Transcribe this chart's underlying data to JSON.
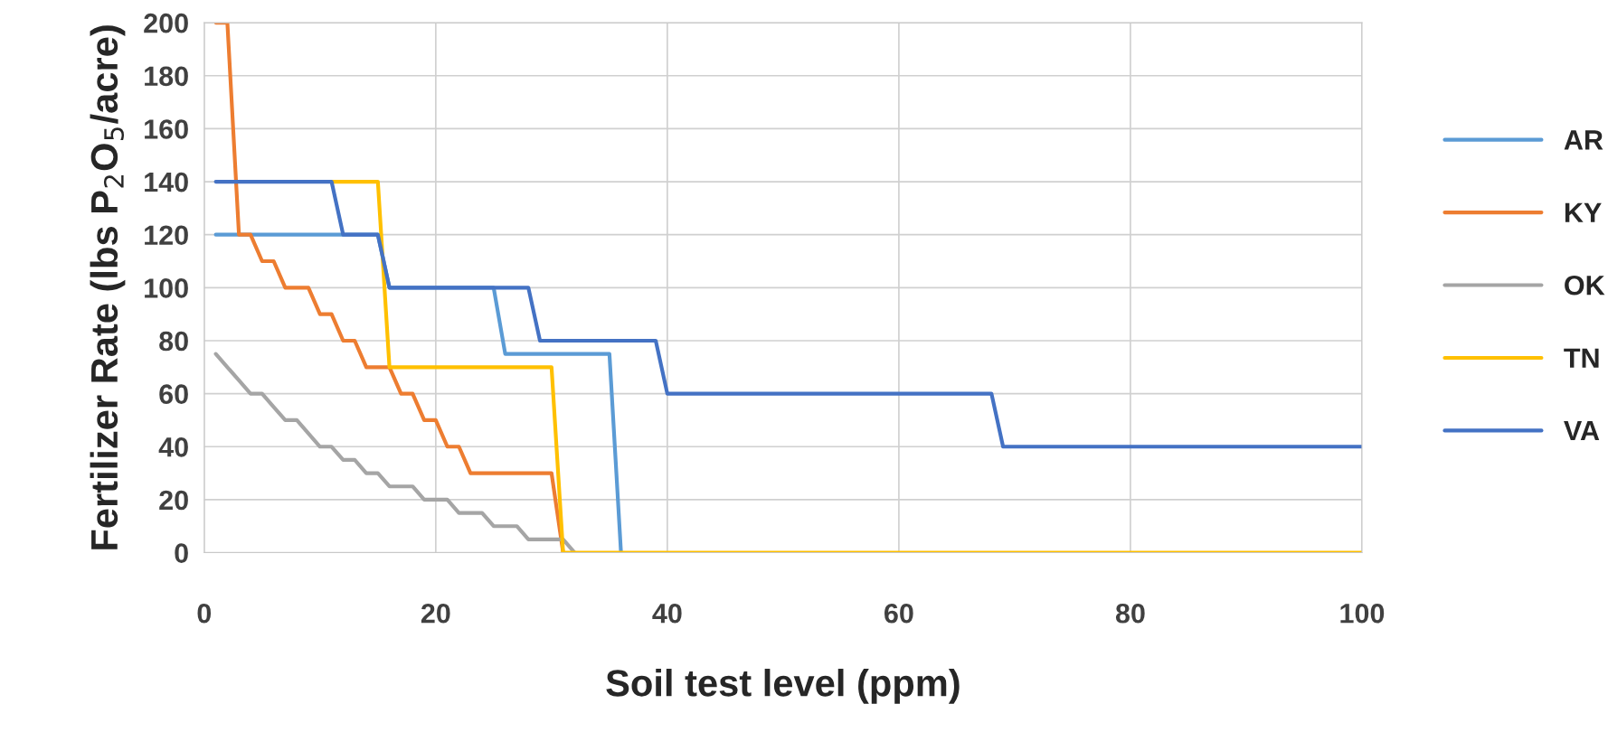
{
  "chart_data": {
    "type": "line",
    "xlabel": "Soil test level (ppm)",
    "ylabel": "Fertilizer Rate (lbs P$_{2}$O$_{5}$/acre)",
    "x": [
      1,
      2,
      3,
      4,
      5,
      6,
      7,
      8,
      9,
      10,
      11,
      12,
      13,
      14,
      15,
      16,
      17,
      18,
      19,
      20,
      21,
      22,
      23,
      24,
      25,
      26,
      27,
      28,
      29,
      30,
      31,
      32,
      33,
      34,
      35,
      36,
      37,
      38,
      39,
      40,
      41,
      42,
      43,
      44,
      45,
      46,
      47,
      48,
      49,
      50,
      51,
      52,
      53,
      54,
      55,
      56,
      57,
      58,
      59,
      60,
      61,
      62,
      63,
      64,
      65,
      66,
      67,
      68,
      69,
      70,
      71,
      72,
      73,
      74,
      75,
      76,
      77,
      78,
      79,
      80,
      81,
      82,
      83,
      84,
      85,
      86,
      87,
      88,
      89,
      90,
      91,
      92,
      93,
      94,
      95,
      96,
      97,
      98,
      99,
      100
    ],
    "series": [
      {
        "name": "AR",
        "color": "#5b9bd5",
        "values": [
          120,
          120,
          120,
          120,
          120,
          120,
          120,
          120,
          120,
          120,
          120,
          120,
          120,
          120,
          120,
          100,
          100,
          100,
          100,
          100,
          100,
          100,
          100,
          100,
          100,
          75,
          75,
          75,
          75,
          75,
          75,
          75,
          75,
          75,
          75,
          0,
          null,
          null,
          null,
          null,
          null,
          null,
          null,
          null,
          null,
          null,
          null,
          null,
          null,
          null,
          null,
          null,
          null,
          null,
          null,
          null,
          null,
          null,
          null,
          null,
          null,
          null,
          null,
          null,
          null,
          null,
          null,
          null,
          null,
          null,
          null,
          null,
          null,
          null,
          null,
          null,
          null,
          null,
          null,
          null,
          null,
          null,
          null,
          null,
          null,
          null,
          null,
          null,
          null,
          null,
          null,
          null,
          null,
          null,
          null,
          null,
          null,
          null,
          null,
          null
        ]
      },
      {
        "name": "KY",
        "color": "#ed7d31",
        "values": [
          200,
          200,
          120,
          120,
          110,
          110,
          100,
          100,
          100,
          90,
          90,
          80,
          80,
          70,
          70,
          70,
          60,
          60,
          50,
          50,
          40,
          40,
          30,
          30,
          30,
          30,
          30,
          30,
          30,
          30,
          0,
          null,
          null,
          null,
          null,
          null,
          null,
          null,
          null,
          null,
          null,
          null,
          null,
          null,
          null,
          null,
          null,
          null,
          null,
          null,
          null,
          null,
          null,
          null,
          null,
          null,
          null,
          null,
          null,
          null,
          null,
          null,
          null,
          null,
          null,
          null,
          null,
          null,
          null,
          null,
          null,
          null,
          null,
          null,
          null,
          null,
          null,
          null,
          null,
          null,
          null,
          null,
          null,
          null,
          null,
          null,
          null,
          null,
          null,
          null,
          null,
          null,
          null,
          null,
          null,
          null,
          null,
          null,
          null,
          null
        ]
      },
      {
        "name": "OK",
        "color": "#a5a5a5",
        "values": [
          75,
          70,
          65,
          60,
          60,
          55,
          50,
          50,
          45,
          40,
          40,
          35,
          35,
          30,
          30,
          25,
          25,
          25,
          20,
          20,
          20,
          15,
          15,
          15,
          10,
          10,
          10,
          5,
          5,
          5,
          5,
          0,
          null,
          null,
          null,
          null,
          null,
          null,
          null,
          null,
          null,
          null,
          null,
          null,
          null,
          null,
          null,
          null,
          null,
          null,
          null,
          null,
          null,
          null,
          null,
          null,
          null,
          null,
          null,
          null,
          null,
          null,
          null,
          null,
          null,
          null,
          null,
          null,
          null,
          null,
          null,
          null,
          null,
          null,
          null,
          null,
          null,
          null,
          null,
          null,
          null,
          null,
          null,
          null,
          null,
          null,
          null,
          null,
          null,
          null,
          null,
          null,
          null,
          null,
          null,
          null,
          null,
          null,
          null,
          null
        ]
      },
      {
        "name": "TN",
        "color": "#ffc000",
        "values": [
          null,
          null,
          null,
          null,
          null,
          null,
          null,
          null,
          null,
          null,
          140,
          140,
          140,
          140,
          140,
          70,
          70,
          70,
          70,
          70,
          70,
          70,
          70,
          70,
          70,
          70,
          70,
          70,
          70,
          70,
          0,
          0,
          0,
          0,
          0,
          0,
          0,
          0,
          0,
          0,
          0,
          0,
          0,
          0,
          0,
          0,
          0,
          0,
          0,
          0,
          0,
          0,
          0,
          0,
          0,
          0,
          0,
          0,
          0,
          0,
          0,
          0,
          0,
          0,
          0,
          0,
          0,
          0,
          0,
          0,
          0,
          0,
          0,
          0,
          0,
          0,
          0,
          0,
          0,
          0,
          0,
          0,
          0,
          0,
          0,
          0,
          0,
          0,
          0,
          0,
          0,
          0,
          0,
          0,
          0,
          0,
          0,
          0,
          0,
          0
        ]
      },
      {
        "name": "VA",
        "color": "#4472c4",
        "values": [
          140,
          140,
          140,
          140,
          140,
          140,
          140,
          140,
          140,
          140,
          140,
          120,
          120,
          120,
          120,
          100,
          100,
          100,
          100,
          100,
          100,
          100,
          100,
          100,
          100,
          100,
          100,
          100,
          80,
          80,
          80,
          80,
          80,
          80,
          80,
          80,
          80,
          80,
          80,
          60,
          60,
          60,
          60,
          60,
          60,
          60,
          60,
          60,
          60,
          60,
          60,
          60,
          60,
          60,
          60,
          60,
          60,
          60,
          60,
          60,
          60,
          60,
          60,
          60,
          60,
          60,
          60,
          60,
          40,
          40,
          40,
          40,
          40,
          40,
          40,
          40,
          40,
          40,
          40,
          40,
          40,
          40,
          40,
          40,
          40,
          40,
          40,
          40,
          40,
          40,
          40,
          40,
          40,
          40,
          40,
          40,
          40,
          40,
          40,
          40
        ]
      }
    ],
    "xlim": [
      0,
      100
    ],
    "xticks": [
      0,
      20,
      40,
      60,
      80,
      100
    ],
    "ylim": [
      0,
      200
    ],
    "yticks": [
      0,
      20,
      40,
      60,
      80,
      100,
      120,
      140,
      160,
      180,
      200
    ],
    "grid": true,
    "legend": "right",
    "marker": "none",
    "line_style": "solid"
  }
}
